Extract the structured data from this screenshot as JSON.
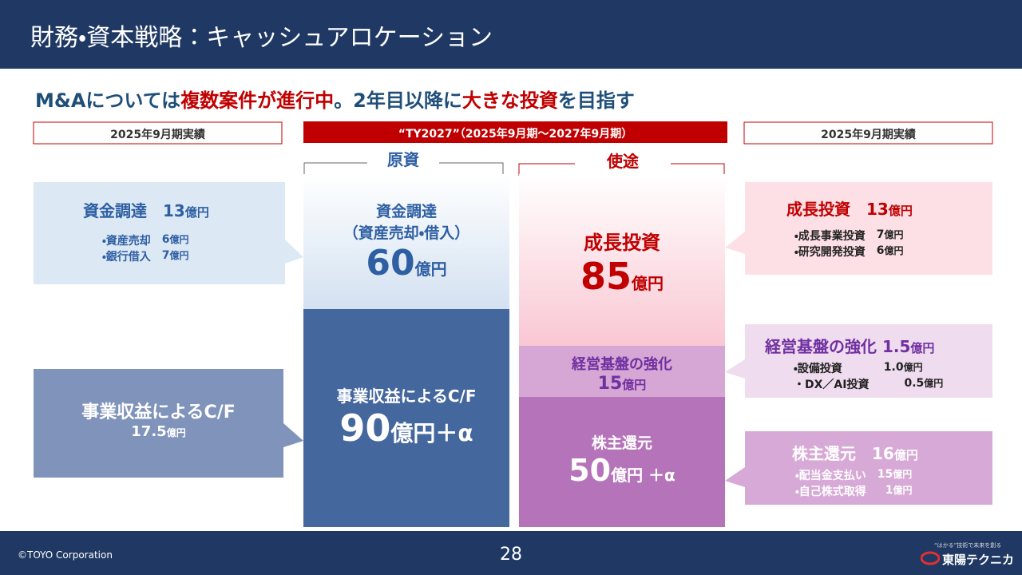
{
  "header": {
    "title": "財務・資本戦略：キャッシュアロケーション"
  },
  "headline": [
    "M&Aについては",
    "複数案件が進行中",
    "。2年目以降に",
    "大きな投資",
    "を目指す"
  ],
  "left": {
    "period": "2025年9月期実績",
    "funding": {
      "title": "資金調達",
      "amount": "13",
      "unit": "億円",
      "items": [
        [
          "・資産売却",
          "6",
          "億円"
        ],
        [
          "・銀行借入",
          "7",
          "億円"
        ]
      ]
    },
    "cf": {
      "title": "事業収益によるC/F",
      "amount": "17.5",
      "unit": "億円"
    }
  },
  "plan": {
    "period": "“TY2027”（2025年9月期～2027年9月期）",
    "sources_label": "原資",
    "uses_label": "使途",
    "sources": [
      {
        "title": "資金調達",
        "subtitle": "（資産売却・借入）",
        "amount": "60",
        "unit": "億円"
      },
      {
        "title": "事業収益によるC/F",
        "amount": "90",
        "unit": "億円＋α"
      }
    ],
    "uses": [
      {
        "title": "成長投資",
        "amount": "85",
        "unit": "億円"
      },
      {
        "title": "経営基盤の強化",
        "amount": "15",
        "unit": "億円"
      },
      {
        "title": "株主還元",
        "amount": "50",
        "unit": "億円 ＋α"
      }
    ]
  },
  "right": {
    "period": "2025年9月期実績",
    "growth": {
      "title": "成長投資",
      "amount": "13",
      "unit": "億円",
      "items": [
        [
          "・成長事業投資",
          "7",
          "億円"
        ],
        [
          "・研究開発投資",
          "6",
          "億円"
        ]
      ]
    },
    "base": {
      "title": "経営基盤の強化",
      "amount": "1.5",
      "unit": "億円",
      "items": [
        [
          "・設備投資",
          "1.0",
          "億円"
        ],
        [
          "・DX／AI投資",
          "0.5",
          "億円"
        ]
      ]
    },
    "returns": {
      "title": "株主還元",
      "amount": "16",
      "unit": "億円",
      "items": [
        [
          "・配当金支払い",
          "15",
          "億円"
        ],
        [
          "・自己株式取得",
          "1",
          "億円"
        ]
      ]
    }
  },
  "footer": {
    "copyright": "©TOYO Corporation",
    "page": "28",
    "tagline": "“はかる”技術で未来を創る",
    "logo": "東陽テクニカ"
  }
}
